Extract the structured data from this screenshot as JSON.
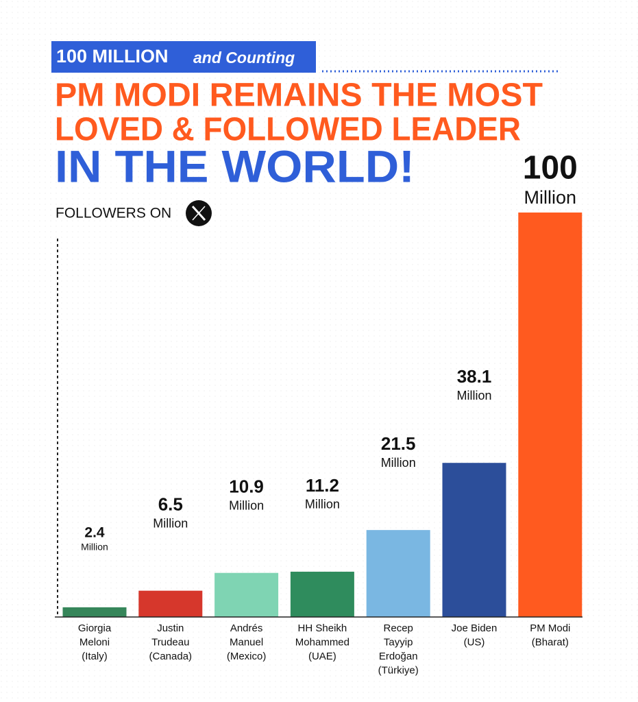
{
  "header": {
    "highlight": "100 MILLION",
    "highlight_tail": "and Counting"
  },
  "chart_data": {
    "type": "bar",
    "title_lines": [
      "PM MODI REMAINS THE MOST",
      "LOVED & FOLLOWED LEADER",
      "IN THE WORLD!"
    ],
    "subtitle": "FOLLOWERS ON",
    "unit": "Million",
    "categories": [
      "Giorgia\nMeloni\n(Italy)",
      "Justin\nTrudeau\n(Canada)",
      "Andrés\nManuel\n(Mexico)",
      "HH Sheikh\nMohammed\n(UAE)",
      "Recep\nTayyip\nErdoğan\n(Türkiye)",
      "Joe Biden\n(US)",
      "PM Modi\n(Bharat)"
    ],
    "values": [
      2.4,
      6.5,
      10.9,
      11.2,
      21.5,
      38.1,
      100
    ],
    "colors": [
      "#36865a",
      "#d6372c",
      "#7fd4b3",
      "#2f8c5d",
      "#7ab7e2",
      "#2c4e9a",
      "#ff5a1f"
    ],
    "ylim": [
      0,
      100
    ]
  }
}
